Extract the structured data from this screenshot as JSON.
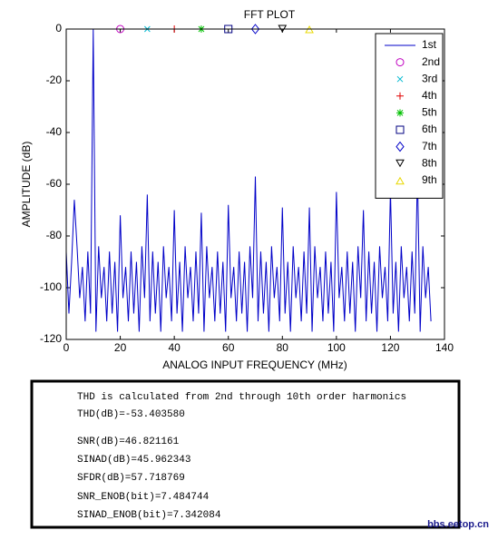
{
  "chart_data": {
    "type": "line",
    "title": "FFT PLOT",
    "xlabel": "ANALOG INPUT FREQUENCY (MHz)",
    "ylabel": "AMPLITUDE (dB)",
    "xlim": [
      0,
      140
    ],
    "ylim": [
      -120,
      0
    ],
    "xticks": [
      0,
      20,
      40,
      60,
      80,
      100,
      120,
      140
    ],
    "yticks": [
      -120,
      -100,
      -80,
      -60,
      -40,
      -20,
      0
    ],
    "legend": "upper right",
    "series": [
      {
        "name": "1st",
        "color": "#0000c8",
        "marker": "line",
        "x": [
          0,
          1,
          2,
          3,
          4,
          5,
          6,
          7,
          8,
          9,
          10,
          11,
          12,
          13,
          14,
          15,
          16,
          17,
          18,
          19,
          20,
          21,
          22,
          23,
          24,
          25,
          26,
          27,
          28,
          29,
          30,
          31,
          32,
          33,
          34,
          35,
          36,
          37,
          38,
          39,
          40,
          41,
          42,
          43,
          44,
          45,
          46,
          47,
          48,
          49,
          50,
          51,
          52,
          53,
          54,
          55,
          56,
          57,
          58,
          59,
          60,
          61,
          62,
          63,
          64,
          65,
          66,
          67,
          68,
          69,
          70,
          71,
          72,
          73,
          74,
          75,
          76,
          77,
          78,
          79,
          80,
          81,
          82,
          83,
          84,
          85,
          86,
          87,
          88,
          89,
          90,
          91,
          92,
          93,
          94,
          95,
          96,
          97,
          98,
          99,
          100,
          101,
          102,
          103,
          104,
          105,
          106,
          107,
          108,
          109,
          110,
          111,
          112,
          113,
          114,
          115,
          116,
          117,
          118,
          119,
          120,
          121,
          122,
          123,
          124,
          125,
          126,
          127,
          128,
          129,
          130,
          131,
          132,
          133,
          134,
          135
        ],
        "values": [
          -86,
          -110,
          -90,
          -66,
          -84,
          -104,
          -92,
          -113,
          -86,
          -110,
          0,
          -117,
          -84,
          -104,
          -92,
          -113,
          -86,
          -110,
          -90,
          -117,
          -72,
          -104,
          -92,
          -113,
          -86,
          -110,
          -90,
          -117,
          -84,
          -104,
          -64,
          -113,
          -86,
          -110,
          -90,
          -117,
          -84,
          -104,
          -92,
          -113,
          -70,
          -110,
          -90,
          -117,
          -84,
          -104,
          -92,
          -113,
          -86,
          -110,
          -71,
          -117,
          -84,
          -104,
          -92,
          -113,
          -86,
          -110,
          -90,
          -117,
          -68,
          -104,
          -92,
          -113,
          -86,
          -110,
          -90,
          -117,
          -84,
          -104,
          -57,
          -113,
          -86,
          -110,
          -90,
          -117,
          -84,
          -104,
          -92,
          -113,
          -69,
          -110,
          -90,
          -117,
          -84,
          -104,
          -92,
          -113,
          -86,
          -110,
          -69,
          -117,
          -84,
          -104,
          -92,
          -113,
          -86,
          -110,
          -90,
          -117,
          -63,
          -104,
          -92,
          -113,
          -86,
          -110,
          -90,
          -117,
          -84,
          -104,
          -70,
          -113,
          -86,
          -110,
          -90,
          -117,
          -84,
          -104,
          -92,
          -113,
          -62,
          -110,
          -90,
          -117,
          -84,
          -104,
          -92,
          -113,
          -86,
          -110,
          -55,
          -117,
          -84,
          -104,
          -92,
          -113
        ]
      },
      {
        "name": "2nd",
        "color": "#c000c0",
        "marker": "o",
        "x": [
          20
        ],
        "values": [
          0
        ]
      },
      {
        "name": "3rd",
        "color": "#00b8d0",
        "marker": "x",
        "x": [
          30
        ],
        "values": [
          0
        ]
      },
      {
        "name": "4th",
        "color": "#e00000",
        "marker": "+",
        "x": [
          40
        ],
        "values": [
          0
        ]
      },
      {
        "name": "5th",
        "color": "#00c000",
        "marker": "*",
        "x": [
          50
        ],
        "values": [
          0
        ]
      },
      {
        "name": "6th",
        "color": "#000080",
        "marker": "s",
        "x": [
          60
        ],
        "values": [
          0
        ]
      },
      {
        "name": "7th",
        "color": "#0000c8",
        "marker": "d",
        "x": [
          70
        ],
        "values": [
          0
        ]
      },
      {
        "name": "8th",
        "color": "#000000",
        "marker": "v",
        "x": [
          80
        ],
        "values": [
          0
        ]
      },
      {
        "name": "9th",
        "color": "#e8d800",
        "marker": "^",
        "x": [
          90
        ],
        "values": [
          0
        ]
      }
    ]
  },
  "text_box": {
    "lines": [
      "THD is calculated from 2nd through 10th order harmonics",
      "THD(dB)=-53.403580",
      "SNR(dB)=46.821161",
      "SINAD(dB)=45.962343",
      "SFDR(dB)=57.718769",
      "SNR_ENOB(bit)=7.484744",
      "SINAD_ENOB(bit)=7.342084"
    ]
  },
  "watermark": "bbs.eetop.cn"
}
